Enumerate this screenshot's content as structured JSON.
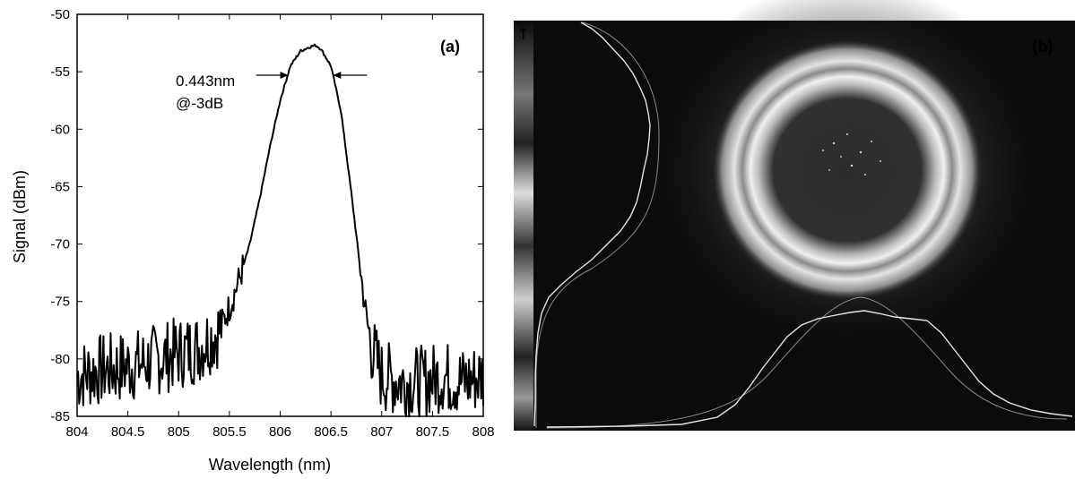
{
  "chart_data": [
    {
      "type": "line",
      "panel_label": "(a)",
      "xlabel": "Wavelength (nm)",
      "ylabel": "Signal (dBm)",
      "xlim": [
        804,
        808
      ],
      "ylim": [
        -85,
        -50
      ],
      "xticks": [
        "804",
        "804.5",
        "805",
        "805.5",
        "806",
        "806.5",
        "807",
        "807.5",
        "808"
      ],
      "yticks": [
        "-50",
        "-55",
        "-60",
        "-65",
        "-70",
        "-75",
        "-80",
        "-85"
      ],
      "annotations": [
        "0.443nm",
        "@-3dB"
      ],
      "fwhm_markers_nm": [
        806.08,
        806.52
      ],
      "series": [
        {
          "x": [
            804.0,
            804.2,
            804.4,
            804.6,
            804.8,
            805.0,
            805.2,
            805.4,
            805.5,
            805.6,
            805.7,
            805.8,
            805.9,
            806.0,
            806.1,
            806.2,
            806.3,
            806.35,
            806.4,
            806.5,
            806.6,
            806.7,
            806.8,
            806.85,
            806.9,
            807.0,
            807.2,
            807.4,
            807.6,
            807.8,
            808.0
          ],
          "y": [
            -81.5,
            -81.0,
            -80.8,
            -80.5,
            -80.0,
            -79.5,
            -79.0,
            -77.5,
            -75.5,
            -73.0,
            -70.0,
            -66.0,
            -61.5,
            -57.5,
            -54.5,
            -53.2,
            -52.8,
            -52.7,
            -53.0,
            -54.5,
            -58.5,
            -65.5,
            -73.0,
            -76.5,
            -79.0,
            -81.5,
            -82.0,
            -82.0,
            -81.5,
            -82.0,
            -81.5
          ]
        }
      ]
    },
    {
      "type": "image",
      "panel_label": "(b)"
    }
  ]
}
